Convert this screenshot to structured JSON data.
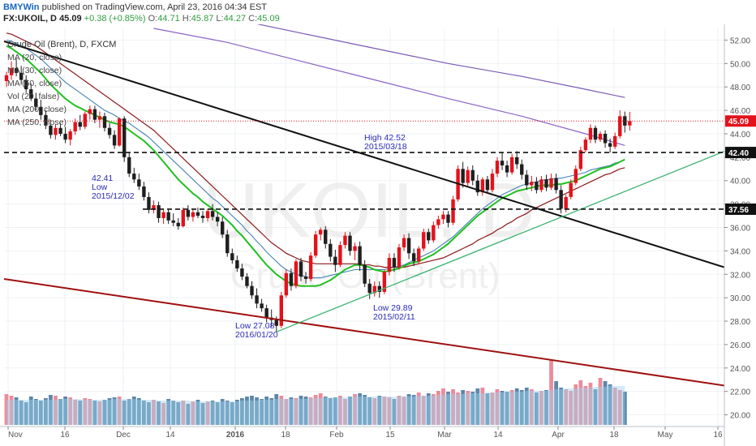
{
  "header": {
    "brand": "BMYWin",
    "published": "published on TradingView.com, April 23, 2016 04:34 EST",
    "symbol": "FX:UKOIL, D",
    "last": "45.09",
    "change": "+0.38 (+0.85%)",
    "o_label": "O:",
    "o_value": "44.71",
    "h_label": "H:",
    "h_value": "45.87",
    "l_label": "L:",
    "l_value": "44.27",
    "c_label": "C:",
    "c_value": "45.09"
  },
  "legend": {
    "title": "Crude Oil (Brent), D, FXCM",
    "indicators": [
      "MA (20, close)",
      "MA (30, close)",
      "MA (50, close)",
      "Vol (20, false)",
      "MA (200, close)",
      "MA (250, close)"
    ]
  },
  "watermark": {
    "symbol": "UKOIL, D",
    "name": "Crude Oil (Brent)"
  },
  "colors": {
    "up": "#e3121b",
    "down": "#1f1f1f",
    "ma20": "#20c020",
    "ma30": "#4682b4",
    "ma50": "#8b1a1a",
    "ma200": "#8a63c7",
    "ma250": "#7b59b5",
    "trend_black": "#111111",
    "trend_red": "#a01010",
    "trend_green": "#3cb371",
    "vol_up": "#e88090",
    "vol_down": "#4a7aa0",
    "vol_ma": "#9fd3ee",
    "price_tag": "#e3121b",
    "level_tag": "#111111"
  },
  "chart_data": {
    "type": "candlestick",
    "y_axis": {
      "min": 19,
      "max": 53,
      "ticks": [
        "52.00",
        "50.00",
        "48.00",
        "46.00",
        "44.00",
        "42.00",
        "40.00",
        "38.00",
        "36.00",
        "34.00",
        "32.00",
        "30.00",
        "28.00",
        "26.00",
        "24.00",
        "22.00",
        "20.00"
      ]
    },
    "x_ticks": [
      "Nov",
      "16",
      "Dec",
      "14",
      "2016",
      "18",
      "Feb",
      "15",
      "Mar",
      "14",
      "Apr",
      "18",
      "May",
      "16"
    ],
    "last_price": "45.09",
    "levels": [
      "42.40",
      "37.56"
    ],
    "annotations": [
      {
        "lines": [
          "High 42.52",
          "2015/03/18"
        ]
      },
      {
        "lines": [
          "42.41",
          "Low",
          "2015/12/02"
        ]
      },
      {
        "lines": [
          "Low 27.08",
          "2016/01/20"
        ]
      },
      {
        "lines": [
          "Low 29.89",
          "2015/02/11"
        ]
      }
    ],
    "candles": [
      [
        48.5,
        49.3,
        48.0,
        49.0
      ],
      [
        49.0,
        50.2,
        48.6,
        49.6
      ],
      [
        49.6,
        50.4,
        48.9,
        49.2
      ],
      [
        49.2,
        49.8,
        48.2,
        48.6
      ],
      [
        48.6,
        49.0,
        47.5,
        47.8
      ],
      [
        47.8,
        48.3,
        46.8,
        47.0
      ],
      [
        47.0,
        47.5,
        46.0,
        46.3
      ],
      [
        46.3,
        46.9,
        45.2,
        45.6
      ],
      [
        45.6,
        46.0,
        44.4,
        44.7
      ],
      [
        44.7,
        45.2,
        43.6,
        43.9
      ],
      [
        43.9,
        44.8,
        43.5,
        44.5
      ],
      [
        44.5,
        44.9,
        43.8,
        44.0
      ],
      [
        44.0,
        44.6,
        43.2,
        43.5
      ],
      [
        43.5,
        44.4,
        43.0,
        44.2
      ],
      [
        44.2,
        45.3,
        43.9,
        45.0
      ],
      [
        45.0,
        45.6,
        44.3,
        44.6
      ],
      [
        44.6,
        45.9,
        44.4,
        45.7
      ],
      [
        45.7,
        46.4,
        45.2,
        46.1
      ],
      [
        46.1,
        46.4,
        44.9,
        45.2
      ],
      [
        45.2,
        45.9,
        44.5,
        45.5
      ],
      [
        45.5,
        45.8,
        44.2,
        44.5
      ],
      [
        44.5,
        44.9,
        43.6,
        43.9
      ],
      [
        43.9,
        44.3,
        42.7,
        43.0
      ],
      [
        43.0,
        45.4,
        42.9,
        45.3
      ],
      [
        45.3,
        45.5,
        41.6,
        42.0
      ],
      [
        42.0,
        42.4,
        40.3,
        40.6
      ],
      [
        40.6,
        41.1,
        39.8,
        40.1
      ],
      [
        40.1,
        40.6,
        39.2,
        39.5
      ],
      [
        39.5,
        39.9,
        38.3,
        38.6
      ],
      [
        38.6,
        39.0,
        37.2,
        37.5
      ],
      [
        37.5,
        38.3,
        37.2,
        37.9
      ],
      [
        37.9,
        38.2,
        36.4,
        36.8
      ],
      [
        36.8,
        37.6,
        36.3,
        37.3
      ],
      [
        37.3,
        37.6,
        36.3,
        36.6
      ],
      [
        36.6,
        37.2,
        36.1,
        36.4
      ],
      [
        36.4,
        36.8,
        35.8,
        36.1
      ],
      [
        36.1,
        37.7,
        36.0,
        37.5
      ],
      [
        37.5,
        37.9,
        36.6,
        36.9
      ],
      [
        36.9,
        37.6,
        36.5,
        37.3
      ],
      [
        37.3,
        37.7,
        36.8,
        37.0
      ],
      [
        37.0,
        37.4,
        36.4,
        36.8
      ],
      [
        36.8,
        37.6,
        36.5,
        37.4
      ],
      [
        37.4,
        38.0,
        36.6,
        36.9
      ],
      [
        36.9,
        37.3,
        36.1,
        36.5
      ],
      [
        36.5,
        36.9,
        35.1,
        35.4
      ],
      [
        35.4,
        35.8,
        33.5,
        33.8
      ],
      [
        33.8,
        34.2,
        32.9,
        33.2
      ],
      [
        33.2,
        33.6,
        32.2,
        32.5
      ],
      [
        32.5,
        32.9,
        31.5,
        31.8
      ],
      [
        31.8,
        32.1,
        30.8,
        31.0
      ],
      [
        31.0,
        31.4,
        29.9,
        30.2
      ],
      [
        30.2,
        30.8,
        29.1,
        29.5
      ],
      [
        29.5,
        29.9,
        28.8,
        29.1
      ],
      [
        29.1,
        29.4,
        27.9,
        28.3
      ],
      [
        28.3,
        29.0,
        27.5,
        28.1
      ],
      [
        28.1,
        28.4,
        27.08,
        27.6
      ],
      [
        27.6,
        30.5,
        27.4,
        30.2
      ],
      [
        30.2,
        32.4,
        30.0,
        32.1
      ],
      [
        32.1,
        32.5,
        30.6,
        31.0
      ],
      [
        31.0,
        33.3,
        30.8,
        33.1
      ],
      [
        33.1,
        33.4,
        31.4,
        31.8
      ],
      [
        31.8,
        32.2,
        31.2,
        31.6
      ],
      [
        31.6,
        33.9,
        31.4,
        33.6
      ],
      [
        33.6,
        35.7,
        33.4,
        35.4
      ],
      [
        35.4,
        36.0,
        34.9,
        35.8
      ],
      [
        35.8,
        36.1,
        34.2,
        34.6
      ],
      [
        34.6,
        35.0,
        33.1,
        33.5
      ],
      [
        33.5,
        34.1,
        32.2,
        32.8
      ],
      [
        32.8,
        34.8,
        32.6,
        34.5
      ],
      [
        34.5,
        35.6,
        34.2,
        35.3
      ],
      [
        35.3,
        35.6,
        33.6,
        34.0
      ],
      [
        34.0,
        34.7,
        33.2,
        34.4
      ],
      [
        34.4,
        34.8,
        32.3,
        32.8
      ],
      [
        32.8,
        33.2,
        30.9,
        31.2
      ],
      [
        31.2,
        31.6,
        29.89,
        30.4
      ],
      [
        30.4,
        31.4,
        30.1,
        31.0
      ],
      [
        31.0,
        31.4,
        30.0,
        30.5
      ],
      [
        30.5,
        32.4,
        30.3,
        32.2
      ],
      [
        32.2,
        33.8,
        31.9,
        33.4
      ],
      [
        33.4,
        33.8,
        32.2,
        32.6
      ],
      [
        32.6,
        34.6,
        32.4,
        34.3
      ],
      [
        34.3,
        35.4,
        34.0,
        35.1
      ],
      [
        35.1,
        35.5,
        33.3,
        33.8
      ],
      [
        33.8,
        34.2,
        32.7,
        33.1
      ],
      [
        33.1,
        34.4,
        32.9,
        34.2
      ],
      [
        34.2,
        35.9,
        34.0,
        35.6
      ],
      [
        35.6,
        35.9,
        34.6,
        34.9
      ],
      [
        34.9,
        36.5,
        34.7,
        36.2
      ],
      [
        36.2,
        37.0,
        35.9,
        36.7
      ],
      [
        36.7,
        37.4,
        36.3,
        37.1
      ],
      [
        37.1,
        37.4,
        36.0,
        36.4
      ],
      [
        36.4,
        38.7,
        36.2,
        38.4
      ],
      [
        38.4,
        41.3,
        38.2,
        41.0
      ],
      [
        41.0,
        41.6,
        39.4,
        39.8
      ],
      [
        39.8,
        41.2,
        39.5,
        40.9
      ],
      [
        40.9,
        41.3,
        39.6,
        40.0
      ],
      [
        40.0,
        40.5,
        38.7,
        39.0
      ],
      [
        39.0,
        40.3,
        38.7,
        40.1
      ],
      [
        40.1,
        40.4,
        38.9,
        39.2
      ],
      [
        39.2,
        41.0,
        39.0,
        40.6
      ],
      [
        40.6,
        42.0,
        40.3,
        41.7
      ],
      [
        41.7,
        42.4,
        40.9,
        41.3
      ],
      [
        41.3,
        41.7,
        40.3,
        40.7
      ],
      [
        40.7,
        42.3,
        40.5,
        42.0
      ],
      [
        42.0,
        42.52,
        41.0,
        41.4
      ],
      [
        41.4,
        41.8,
        40.1,
        40.5
      ],
      [
        40.5,
        40.9,
        39.2,
        39.6
      ],
      [
        39.6,
        40.4,
        39.1,
        39.9
      ],
      [
        39.9,
        40.3,
        38.9,
        39.2
      ],
      [
        39.2,
        40.4,
        39.0,
        40.1
      ],
      [
        40.1,
        40.5,
        39.1,
        39.4
      ],
      [
        39.4,
        40.6,
        39.2,
        40.2
      ],
      [
        40.2,
        40.6,
        38.9,
        39.2
      ],
      [
        39.2,
        39.6,
        37.2,
        37.6
      ],
      [
        37.6,
        38.8,
        37.3,
        38.6
      ],
      [
        38.6,
        40.1,
        38.4,
        39.8
      ],
      [
        39.8,
        41.3,
        39.6,
        41.0
      ],
      [
        41.0,
        42.9,
        40.8,
        42.6
      ],
      [
        42.6,
        43.7,
        42.4,
        43.5
      ],
      [
        43.5,
        44.8,
        43.2,
        44.5
      ],
      [
        44.5,
        44.7,
        43.2,
        43.5
      ],
      [
        43.5,
        44.2,
        43.3,
        44.0
      ],
      [
        44.0,
        44.3,
        42.8,
        43.2
      ],
      [
        43.2,
        43.6,
        42.4,
        42.9
      ],
      [
        42.9,
        44.1,
        42.7,
        43.8
      ],
      [
        43.8,
        46.0,
        43.6,
        45.5
      ],
      [
        45.5,
        45.9,
        44.1,
        44.7
      ],
      [
        44.71,
        45.87,
        44.27,
        45.09
      ]
    ],
    "volume_max": 100,
    "volume": [
      38,
      36,
      34,
      30,
      28,
      35,
      32,
      30,
      33,
      37,
      36,
      32,
      35,
      34,
      31,
      30,
      33,
      32,
      30,
      29,
      31,
      33,
      34,
      35,
      30,
      32,
      35,
      33,
      30,
      28,
      31,
      29,
      27,
      32,
      30,
      28,
      30,
      26,
      29,
      31,
      27,
      29,
      30,
      28,
      32,
      30,
      28,
      31,
      33,
      35,
      36,
      34,
      32,
      35,
      33,
      38,
      36,
      32,
      34,
      33,
      36,
      35,
      34,
      37,
      39,
      35,
      33,
      34,
      36,
      32,
      35,
      38,
      39,
      37,
      34,
      33,
      36,
      35,
      34,
      32,
      36,
      35,
      38,
      37,
      40,
      36,
      39,
      38,
      42,
      45,
      41,
      44,
      40,
      43,
      42,
      41,
      45,
      46,
      39,
      40,
      44,
      42,
      41,
      43,
      45,
      43,
      46,
      44,
      40,
      42,
      43,
      80,
      54,
      46,
      44,
      42,
      50,
      55,
      48,
      52,
      44,
      58,
      54,
      50,
      46,
      43,
      41
    ],
    "volume_ma": [
      30,
      31,
      31,
      31,
      31,
      31,
      31,
      31,
      31,
      31,
      31,
      32,
      32,
      32,
      32,
      32,
      31,
      31,
      31,
      31,
      31,
      31,
      32,
      32,
      32,
      32,
      32,
      31,
      31,
      31,
      31,
      30,
      30,
      30,
      30,
      30,
      30,
      30,
      29,
      29,
      29,
      29,
      29,
      29,
      29,
      29,
      29,
      29,
      30,
      30,
      30,
      30,
      31,
      31,
      31,
      32,
      32,
      32,
      32,
      32,
      32,
      32,
      33,
      33,
      33,
      34,
      34,
      34,
      34,
      34,
      35,
      35,
      35,
      35,
      35,
      35,
      35,
      35,
      35,
      35,
      35,
      35,
      35,
      35,
      36,
      36,
      36,
      36,
      37,
      37,
      38,
      38,
      38,
      38,
      39,
      39,
      39,
      39,
      40,
      40,
      40,
      40,
      41,
      41,
      41,
      41,
      42,
      42,
      42,
      42,
      42,
      43,
      44,
      44,
      45,
      45,
      45,
      46,
      46,
      46,
      47,
      47,
      47,
      48,
      48,
      48,
      48
    ],
    "ma20": [
      51.5,
      51.3,
      51.0,
      50.7,
      50.4,
      50.0,
      49.6,
      49.2,
      48.7,
      48.2,
      47.8,
      47.4,
      47.0,
      46.7,
      46.4,
      46.2,
      46.0,
      45.8,
      45.6,
      45.4,
      45.2,
      45.0,
      44.9,
      44.8,
      44.6,
      44.3,
      44.0,
      43.7,
      43.4,
      43.0,
      42.6,
      42.1,
      41.6,
      41.1,
      40.6,
      40.1,
      39.7,
      39.3,
      38.9,
      38.6,
      38.2,
      37.9,
      37.6,
      37.3,
      37.0,
      36.6,
      36.2,
      35.7,
      35.3,
      34.8,
      34.3,
      33.8,
      33.3,
      32.8,
      32.4,
      32.0,
      31.7,
      31.4,
      31.2,
      31.1,
      31.0,
      31.0,
      31.0,
      31.0,
      31.1,
      31.3,
      31.5,
      31.8,
      32.1,
      32.4,
      32.6,
      32.8,
      32.8,
      32.7,
      32.6,
      32.4,
      32.3,
      32.2,
      32.3,
      32.4,
      32.5,
      32.7,
      32.9,
      33.0,
      33.1,
      33.3,
      33.5,
      33.7,
      34.0,
      34.3,
      34.6,
      35.0,
      35.4,
      35.8,
      36.2,
      36.6,
      37.0,
      37.3,
      37.6,
      37.9,
      38.2,
      38.5,
      38.7,
      38.9,
      39.1,
      39.2,
      39.3,
      39.4,
      39.5,
      39.6,
      39.6,
      39.6,
      39.7,
      39.7,
      39.8,
      39.9,
      40.0,
      40.2,
      40.4,
      40.6,
      40.8,
      41.0,
      41.1,
      41.2,
      41.4,
      41.6,
      41.8
    ],
    "ma30": [
      52.0,
      51.9,
      51.7,
      51.5,
      51.3,
      51.0,
      50.7,
      50.4,
      50.0,
      49.6,
      49.2,
      48.8,
      48.4,
      48.1,
      47.8,
      47.5,
      47.2,
      46.9,
      46.6,
      46.3,
      46.0,
      45.8,
      45.6,
      45.3,
      45.1,
      44.9,
      44.6,
      44.3,
      44.0,
      43.7,
      43.3,
      42.9,
      42.5,
      42.1,
      41.7,
      41.3,
      40.9,
      40.5,
      40.1,
      39.7,
      39.3,
      38.9,
      38.5,
      38.2,
      37.8,
      37.4,
      37.0,
      36.6,
      36.2,
      35.7,
      35.3,
      34.8,
      34.4,
      33.9,
      33.5,
      33.1,
      32.7,
      32.4,
      32.2,
      32.0,
      31.9,
      31.8,
      31.7,
      31.7,
      31.7,
      31.8,
      31.9,
      32.0,
      32.1,
      32.2,
      32.3,
      32.4,
      32.4,
      32.4,
      32.4,
      32.4,
      32.4,
      32.4,
      32.5,
      32.6,
      32.7,
      32.8,
      33.0,
      33.2,
      33.4,
      33.6,
      33.8,
      34.0,
      34.3,
      34.6,
      34.9,
      35.2,
      35.6,
      36.0,
      36.4,
      36.8,
      37.2,
      37.6,
      37.9,
      38.2,
      38.5,
      38.8,
      39.0,
      39.2,
      39.4,
      39.6,
      39.7,
      39.8,
      39.9,
      40.0,
      40.1,
      40.1,
      40.2,
      40.2,
      40.3,
      40.4,
      40.5,
      40.6,
      40.7,
      40.9,
      41.0,
      41.1,
      41.2,
      41.3,
      41.5,
      41.6,
      41.8
    ],
    "ma50": [
      52.6,
      52.5,
      52.3,
      52.1,
      51.9,
      51.7,
      51.5,
      51.2,
      50.9,
      50.6,
      50.3,
      50.0,
      49.7,
      49.4,
      49.1,
      48.8,
      48.5,
      48.2,
      47.9,
      47.6,
      47.3,
      47.0,
      46.7,
      46.4,
      46.1,
      45.8,
      45.5,
      45.2,
      44.9,
      44.6,
      44.3,
      43.9,
      43.5,
      43.1,
      42.7,
      42.3,
      41.9,
      41.5,
      41.1,
      40.7,
      40.3,
      39.9,
      39.5,
      39.1,
      38.7,
      38.3,
      37.9,
      37.5,
      37.1,
      36.7,
      36.3,
      35.9,
      35.5,
      35.1,
      34.7,
      34.4,
      34.1,
      33.8,
      33.6,
      33.4,
      33.2,
      33.1,
      33.0,
      32.9,
      32.9,
      32.9,
      32.9,
      32.9,
      32.9,
      32.9,
      32.9,
      32.9,
      32.9,
      32.8,
      32.8,
      32.7,
      32.7,
      32.6,
      32.6,
      32.6,
      32.6,
      32.6,
      32.7,
      32.8,
      32.9,
      33.0,
      33.1,
      33.2,
      33.3,
      33.4,
      33.6,
      33.8,
      34.0,
      34.2,
      34.4,
      34.6,
      34.9,
      35.1,
      35.3,
      35.5,
      35.8,
      36.0,
      36.3,
      36.5,
      36.8,
      37.0,
      37.2,
      37.5,
      37.7,
      37.9,
      38.1,
      38.3,
      38.5,
      38.7,
      38.9,
      39.1,
      39.3,
      39.5,
      39.7,
      39.9,
      40.1,
      40.3,
      40.5,
      40.6,
      40.8,
      41.0,
      41.1
    ]
  }
}
